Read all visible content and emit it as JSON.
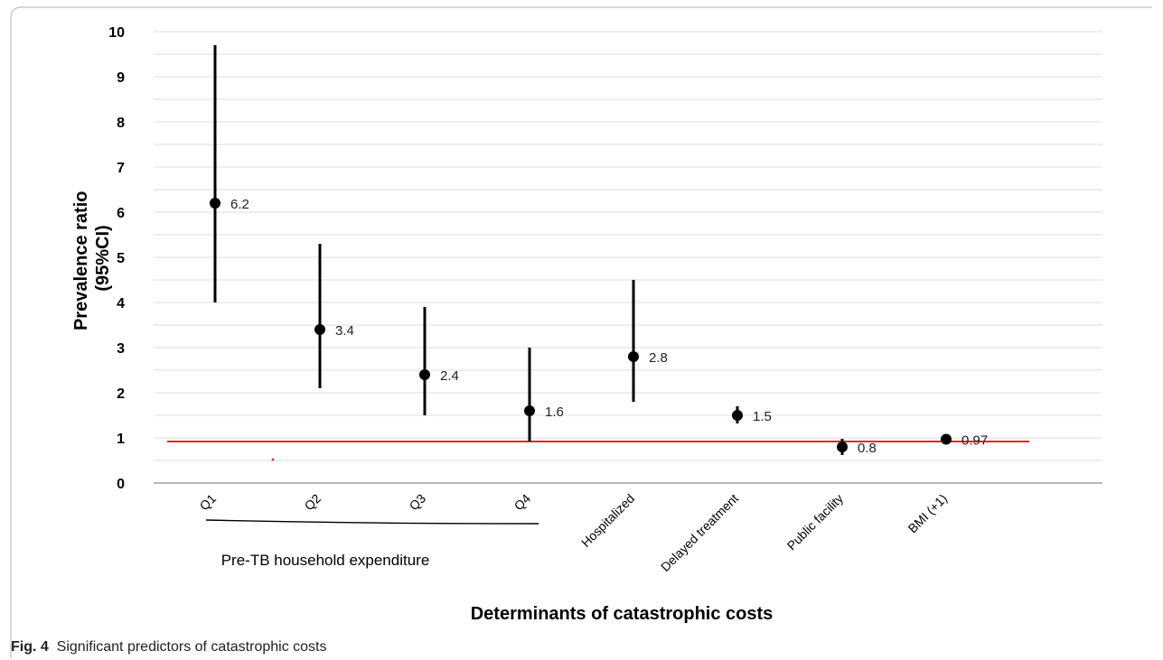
{
  "chart_data": {
    "type": "scatter",
    "ylabel_line1": "Prevalence ratio",
    "ylabel_line2": "(95%CI)",
    "xlabel": "Determinants of catastrophic costs",
    "group_label": "Pre-TB household expenditure",
    "ylim": [
      0,
      10
    ],
    "yticks": [
      "0",
      "1",
      "2",
      "3",
      "4",
      "5",
      "6",
      "7",
      "8",
      "9",
      "10"
    ],
    "grid": true,
    "reference_line": {
      "y": 0.92,
      "color": "#e8262b"
    },
    "point_color": "#000000",
    "points": [
      {
        "category": "Q1",
        "value": 6.2,
        "lower": 4.0,
        "upper": 9.7,
        "label": "6.2"
      },
      {
        "category": "Q2",
        "value": 3.4,
        "lower": 2.1,
        "upper": 5.3,
        "label": "3.4"
      },
      {
        "category": "Q3",
        "value": 2.4,
        "lower": 1.5,
        "upper": 3.9,
        "label": "2.4"
      },
      {
        "category": "Q4",
        "value": 1.6,
        "lower": 0.92,
        "upper": 3.0,
        "label": "1.6"
      },
      {
        "category": "Hospitalized",
        "value": 2.8,
        "lower": 1.8,
        "upper": 4.5,
        "label": "2.8"
      },
      {
        "category": "Delayed treatment",
        "value": 1.5,
        "lower": 1.32,
        "upper": 1.7,
        "label": "1.5"
      },
      {
        "category": "Public facility",
        "value": 0.8,
        "lower": 0.62,
        "upper": 0.98,
        "label": "0.8"
      },
      {
        "category": "BMI (+1)",
        "value": 0.97,
        "lower": 0.95,
        "upper": 0.99,
        "label": "0.97"
      }
    ]
  },
  "caption": {
    "label": "Fig. 4",
    "text": "Significant predictors of catastrophic costs"
  }
}
